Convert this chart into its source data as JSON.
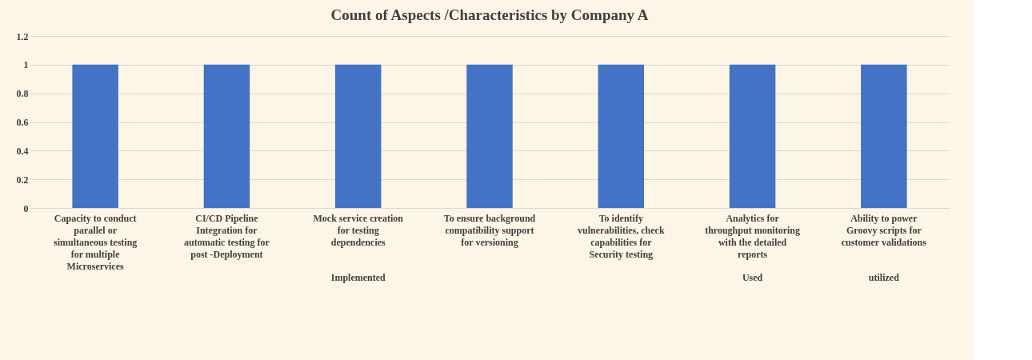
{
  "chart_data": {
    "type": "bar",
    "title": "Count of Aspects /Characteristics by Company A",
    "categories": [
      "Capacity to conduct parallel or simultaneous testing for multiple Microservices",
      "CI/CD Pipeline Integration for automatic testing for post -Deployment",
      "Mock service creation for testing dependencies",
      "To ensure background compatibility support for versioning",
      "To identify vulnerabilities, check capabilities for Security testing",
      "Analytics for throughput monitoring with the detailed reports",
      "Ability to power Groovy scripts for customer validations"
    ],
    "values": [
      1,
      1,
      1,
      1,
      1,
      1,
      1
    ],
    "color": "#4472c4",
    "ylim": [
      0,
      1.2
    ],
    "yticks": [
      0,
      0.2,
      0.4,
      0.6,
      0.8,
      1,
      1.2
    ],
    "grid": "y",
    "annotations": [
      "Implemented",
      "Used",
      "utilized"
    ]
  }
}
